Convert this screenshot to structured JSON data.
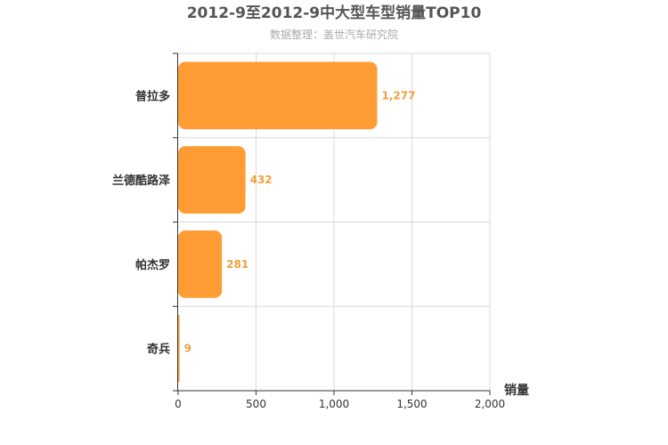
{
  "chart_data": {
    "type": "bar",
    "orientation": "horizontal",
    "title": "2012-9至2012-9中大型车型销量TOP10",
    "subtitle": "数据整理：盖世汽车研究院",
    "categories": [
      "普拉多",
      "兰德酷路泽",
      "帕杰罗",
      "奇兵"
    ],
    "values": [
      1277,
      432,
      281,
      9
    ],
    "value_labels": [
      "1,277",
      "432",
      "281",
      "9"
    ],
    "xlabel": "销量",
    "xlim": [
      0,
      2000
    ],
    "x_ticks": [
      0,
      500,
      1000,
      1500,
      2000
    ],
    "x_tick_labels": [
      "0",
      "500",
      "1,000",
      "1,500",
      "2,000"
    ],
    "grid": true,
    "bar_color": "#ff9c33"
  }
}
